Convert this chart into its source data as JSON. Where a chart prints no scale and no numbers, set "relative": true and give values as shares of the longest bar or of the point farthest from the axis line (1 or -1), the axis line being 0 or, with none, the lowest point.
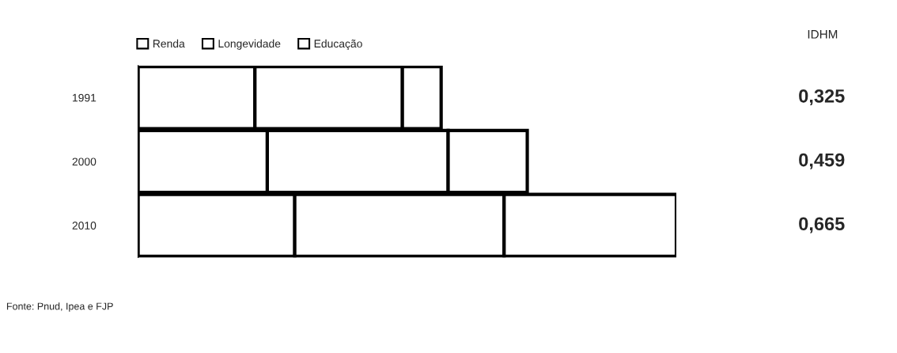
{
  "chart_data": {
    "type": "bar",
    "orientation": "horizontal",
    "stacked": true,
    "relative": true,
    "categories": [
      "1991",
      "2000",
      "2010"
    ],
    "series": [
      {
        "name": "Renda",
        "color": "#ffffff",
        "values": [
          0.217,
          0.24,
          0.291
        ]
      },
      {
        "name": "Longevidade",
        "color": "#ffffff",
        "values": [
          0.274,
          0.336,
          0.389
        ]
      },
      {
        "name": "Educação",
        "color": "#ffffff",
        "values": [
          0.072,
          0.147,
          0.32
        ]
      }
    ],
    "legend": "top left",
    "grid": false,
    "annotations": [
      "IDHM",
      "0,325",
      "0,459",
      "0,665",
      "Fonte: Pnud, Ipea e FJP"
    ]
  }
}
